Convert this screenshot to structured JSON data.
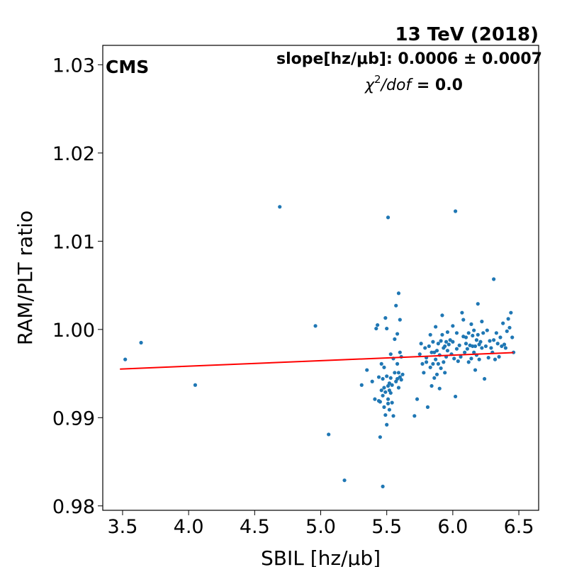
{
  "chart_data": {
    "type": "scatter",
    "title": "13 TeV (2018)",
    "experiment_label": "CMS",
    "slope_text": "slope[hz/μb]: 0.0006 ± 0.0007",
    "chi2_symbol": "χ",
    "chi2_sup": "2",
    "chi2_dof": "/dof",
    "chi2_value": " = 0.0",
    "xlabel": "SBIL [hz/μb]",
    "ylabel": "RAM/PLT ratio",
    "xlim": [
      3.35,
      6.65
    ],
    "ylim": [
      0.9795,
      1.0322
    ],
    "xticks": [
      3.5,
      4.0,
      4.5,
      5.0,
      5.5,
      6.0,
      6.5
    ],
    "xtick_labels": [
      "3.5",
      "4.0",
      "4.5",
      "5.0",
      "5.5",
      "6.0",
      "6.5"
    ],
    "yticks": [
      0.98,
      0.99,
      1.0,
      1.01,
      1.02,
      1.03
    ],
    "ytick_labels": [
      "0.98",
      "0.99",
      "1.00",
      "1.01",
      "1.02",
      "1.03"
    ],
    "grid": false,
    "point_color": "#1f77b4",
    "fit_color": "#ff0000",
    "fit_line": {
      "x": [
        3.48,
        6.46
      ],
      "y": [
        0.99551,
        0.99737
      ]
    },
    "x": [
      3.52,
      3.64,
      4.05,
      4.69,
      4.96,
      5.06,
      5.18,
      5.31,
      5.35,
      5.39,
      5.41,
      5.42,
      5.43,
      5.44,
      5.44,
      5.45,
      5.45,
      5.46,
      5.46,
      5.47,
      5.47,
      5.47,
      5.48,
      5.48,
      5.48,
      5.49,
      5.49,
      5.49,
      5.5,
      5.5,
      5.5,
      5.51,
      5.51,
      5.51,
      5.52,
      5.52,
      5.53,
      5.53,
      5.53,
      5.54,
      5.54,
      5.55,
      5.55,
      5.56,
      5.56,
      5.57,
      5.57,
      5.58,
      5.58,
      5.58,
      5.59,
      5.59,
      5.6,
      5.6,
      5.6,
      5.61,
      5.61,
      5.62,
      5.71,
      5.73,
      5.75,
      5.76,
      5.77,
      5.78,
      5.79,
      5.8,
      5.8,
      5.81,
      5.82,
      5.83,
      5.83,
      5.84,
      5.84,
      5.85,
      5.85,
      5.86,
      5.86,
      5.87,
      5.87,
      5.88,
      5.88,
      5.89,
      5.89,
      5.9,
      5.9,
      5.91,
      5.91,
      5.92,
      5.92,
      5.93,
      5.93,
      5.94,
      5.94,
      5.95,
      5.95,
      5.96,
      5.96,
      5.97,
      5.98,
      5.99,
      6.0,
      6.0,
      6.01,
      6.02,
      6.03,
      6.03,
      6.04,
      6.05,
      6.06,
      6.07,
      6.08,
      6.08,
      6.09,
      6.1,
      6.1,
      6.11,
      6.12,
      6.12,
      6.13,
      6.14,
      6.14,
      6.15,
      6.15,
      6.16,
      6.16,
      6.17,
      6.17,
      6.18,
      6.18,
      6.19,
      6.19,
      6.2,
      6.2,
      6.21,
      6.22,
      6.22,
      6.23,
      6.24,
      6.25,
      6.26,
      6.27,
      6.28,
      6.29,
      6.3,
      6.31,
      6.32,
      6.33,
      6.34,
      6.35,
      6.36,
      6.37,
      6.38,
      6.39,
      6.4,
      6.41,
      6.42,
      6.43,
      6.44,
      6.45,
      6.46,
      5.51,
      6.02,
      6.31,
      5.59,
      5.52
    ],
    "y": [
      0.9966,
      0.9985,
      0.9937,
      1.0139,
      1.0004,
      0.9881,
      0.9829,
      0.9937,
      0.9954,
      0.9941,
      0.9921,
      1.0001,
      1.0005,
      0.9919,
      0.9946,
      0.9878,
      0.9918,
      0.9961,
      0.9931,
      0.9822,
      0.9925,
      0.9944,
      0.9934,
      0.9912,
      0.9957,
      1.0013,
      0.9903,
      0.9929,
      0.9892,
      0.9947,
      1.0001,
      0.9916,
      0.9936,
      0.9921,
      0.9909,
      0.9939,
      0.9928,
      0.9945,
      0.9972,
      0.9917,
      0.9937,
      0.9902,
      0.9967,
      0.9989,
      0.9951,
      0.9941,
      1.0027,
      0.9944,
      0.9961,
      0.9995,
      1.0041,
      0.9934,
      0.9946,
      0.9974,
      1.0011,
      0.9969,
      0.9943,
      0.9949,
      0.9902,
      0.9921,
      0.9972,
      0.9984,
      0.9961,
      0.9951,
      0.9979,
      0.9968,
      0.9963,
      0.9912,
      0.9981,
      0.9994,
      0.9957,
      0.9974,
      0.9936,
      0.9961,
      0.9986,
      0.9945,
      0.9974,
      0.9966,
      1.0003,
      0.9949,
      0.9976,
      0.9984,
      0.9961,
      0.9933,
      0.9971,
      0.9987,
      0.9956,
      0.9994,
      1.0016,
      0.9963,
      0.9979,
      0.9951,
      0.9981,
      0.9969,
      0.9986,
      0.9976,
      0.9997,
      0.9983,
      0.9988,
      0.9972,
      0.9986,
      1.0004,
      0.9967,
      0.9924,
      0.9978,
      0.9996,
      0.9964,
      0.9982,
      0.9969,
      1.0019,
      0.9992,
      1.0011,
      0.9974,
      0.9984,
      0.9991,
      0.9978,
      0.9996,
      0.9963,
      0.9982,
      0.9967,
      1.0006,
      0.9981,
      0.9993,
      0.9974,
      0.9999,
      0.9981,
      0.9954,
      0.9988,
      0.9971,
      0.9994,
      1.0029,
      0.9983,
      0.9966,
      0.9986,
      1.0009,
      0.9979,
      0.9996,
      0.9944,
      0.9981,
      0.9999,
      0.9968,
      0.9987,
      0.9979,
      0.9974,
      0.9988,
      0.9966,
      0.9996,
      0.9984,
      0.9969,
      0.9991,
      0.9981,
      1.0007,
      0.9983,
      0.9979,
      0.9998,
      1.0012,
      1.0002,
      1.0019,
      0.9991,
      0.9974,
      1.0127,
      1.0134,
      1.0057,
      0.9951,
      0.9931
    ]
  }
}
